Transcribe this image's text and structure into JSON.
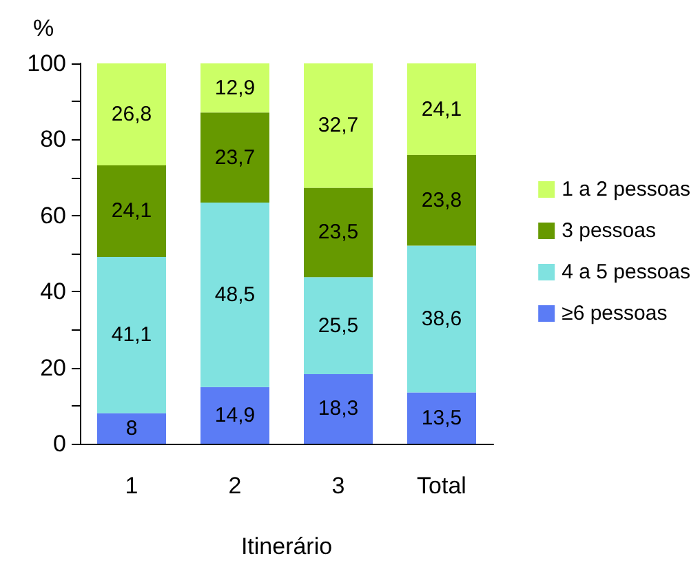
{
  "chart_data": {
    "type": "bar",
    "stacked": true,
    "ylabel": "%",
    "xlabel": "Itinerário",
    "categories": [
      "1",
      "2",
      "3",
      "Total"
    ],
    "series": [
      {
        "name": "≥6 pessoas",
        "color": "#5b7cf5",
        "values": [
          8,
          14.9,
          18.3,
          13.5
        ],
        "value_labels": [
          "8",
          "14,9",
          "18,3",
          "13,5"
        ]
      },
      {
        "name": "4 a 5 pessoas",
        "color": "#80e2e0",
        "values": [
          41.1,
          48.5,
          25.5,
          38.6
        ],
        "value_labels": [
          "41,1",
          "48,5",
          "25,5",
          "38,6"
        ]
      },
      {
        "name": "3 pessoas",
        "color": "#669900",
        "values": [
          24.1,
          23.7,
          23.5,
          23.8
        ],
        "value_labels": [
          "24,1",
          "23,7",
          "23,5",
          "23,8"
        ]
      },
      {
        "name": "1 a 2 pessoas",
        "color": "#ccff66",
        "values": [
          26.8,
          12.9,
          32.7,
          24.1
        ],
        "value_labels": [
          "26,8",
          "12,9",
          "32,7",
          "24,1"
        ]
      }
    ],
    "ylim": [
      0,
      100
    ],
    "yticks": [
      0,
      {
        "value": 10,
        "label": null
      },
      20,
      {
        "value": 30,
        "label": null
      },
      40,
      {
        "value": 50,
        "label": null
      },
      60,
      {
        "value": 70,
        "label": null
      },
      80,
      {
        "value": 90,
        "label": null
      },
      100
    ],
    "grid": false,
    "legend": "right"
  }
}
